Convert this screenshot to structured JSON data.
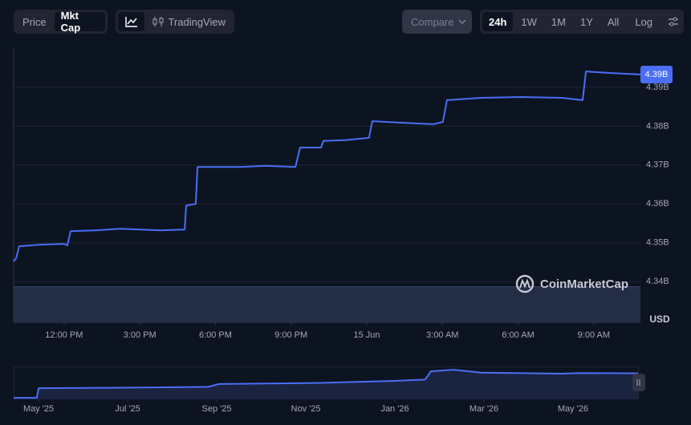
{
  "toolbar": {
    "view_toggle": [
      "Price",
      "Mkt Cap"
    ],
    "tradingview": "TradingView",
    "compare": "Compare",
    "ranges": [
      "24h",
      "1W",
      "1M",
      "1Y",
      "All"
    ],
    "log": "Log"
  },
  "watermark": "CoinMarketCap",
  "chart_data": [
    {
      "type": "line",
      "ylabel": "USD",
      "current_value_label": "4.39B",
      "color": "#4a6ef5",
      "grid": true,
      "x": [
        10.0,
        10.1,
        10.22,
        11.05,
        12.0,
        12.13,
        12.26,
        13.28,
        14.23,
        15.82,
        16.78,
        16.84,
        17.22,
        17.29,
        19.0,
        19.96,
        21.17,
        21.36,
        22.19,
        22.28,
        23.14,
        24.09,
        24.22,
        25.37,
        26.64,
        27.02,
        27.18,
        28.55,
        30.14,
        31.73,
        32.56,
        32.69,
        33.64,
        34.85
      ],
      "values": [
        4.3452,
        4.346,
        4.3491,
        4.3495,
        4.3497,
        4.3493,
        4.353,
        4.3532,
        4.3536,
        4.3532,
        4.3534,
        4.3596,
        4.36,
        4.3695,
        4.3695,
        4.3698,
        4.3695,
        4.3745,
        4.3745,
        4.3762,
        4.3764,
        4.377,
        4.3813,
        4.3809,
        4.3805,
        4.3811,
        4.3867,
        4.3873,
        4.3875,
        4.3873,
        4.3867,
        4.3941,
        4.3937,
        4.3933
      ],
      "xlim": [
        10.0,
        34.85
      ],
      "xticks": [
        {
          "value": 12,
          "label": "12:00 PM"
        },
        {
          "value": 15,
          "label": "3:00 PM"
        },
        {
          "value": 18,
          "label": "6:00 PM"
        },
        {
          "value": 21,
          "label": "9:00 PM"
        },
        {
          "value": 24,
          "label": "15 Jun"
        },
        {
          "value": 27,
          "label": "3:00 AM"
        },
        {
          "value": 30,
          "label": "6:00 AM"
        },
        {
          "value": 33,
          "label": "9:00 AM"
        }
      ],
      "ylim": [
        4.3295,
        4.4001
      ],
      "yticks": [
        {
          "value": 4.34,
          "label": "4.34B"
        },
        {
          "value": 4.35,
          "label": "4.35B"
        },
        {
          "value": 4.36,
          "label": "4.36B"
        },
        {
          "value": 4.37,
          "label": "4.37B"
        },
        {
          "value": 4.38,
          "label": "4.38B"
        },
        {
          "value": 4.39,
          "label": "4.39B"
        }
      ]
    },
    {
      "type": "line",
      "color": "#4a6ef5",
      "x": [
        -0.56,
        -0.04,
        0,
        1.84,
        3.82,
        4.05,
        6.34,
        7.96,
        8.68,
        8.81,
        9.32,
        9.95,
        11.75,
        12.11,
        13.19,
        13.46
      ],
      "values": [
        3.07,
        3.07,
        3.51,
        3.53,
        3.57,
        3.7,
        3.75,
        3.84,
        3.9,
        4.28,
        4.35,
        4.22,
        4.17,
        4.2,
        4.19,
        4.19
      ],
      "xlim": [
        -0.56,
        13.46
      ],
      "ylim": [
        3.0,
        4.5
      ],
      "xticks": [
        {
          "value": 0,
          "label": "May '25"
        },
        {
          "value": 2,
          "label": "Jul '25"
        },
        {
          "value": 4,
          "label": "Sep '25"
        },
        {
          "value": 6,
          "label": "Nov '25"
        },
        {
          "value": 8,
          "label": "Jan '26"
        },
        {
          "value": 10,
          "label": "Mar '26"
        },
        {
          "value": 12,
          "label": "May '26"
        }
      ]
    }
  ]
}
